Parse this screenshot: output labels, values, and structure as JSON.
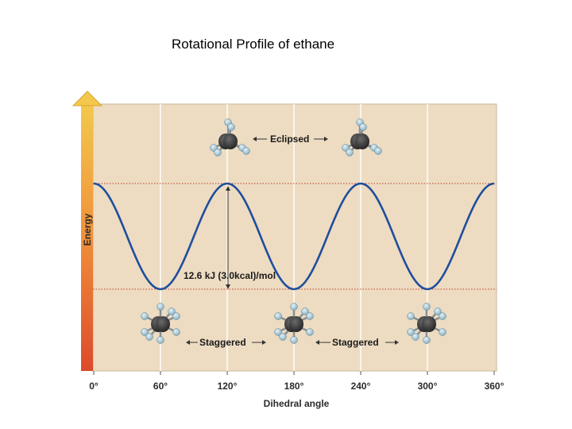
{
  "slide": {
    "title": "Rotational Profile of ethane"
  },
  "chart_data": {
    "type": "line",
    "title": "",
    "xlabel": "Dihedral angle",
    "ylabel": "Energy",
    "x_ticks": [
      "0°",
      "60°",
      "120°",
      "180°",
      "240°",
      "300°",
      "360°"
    ],
    "xlim": [
      0,
      360
    ],
    "grid": "vertical lines at 60° intervals",
    "series": [
      {
        "x": [
          0,
          60,
          120,
          180,
          240,
          300,
          360
        ],
        "y": [
          12.6,
          0,
          12.6,
          0,
          12.6,
          0,
          12.6
        ],
        "color": "#1f4e9c"
      }
    ],
    "annotations": {
      "barrier": "12.6 kJ (3.0kcal)/mol",
      "eclipsed": "Eclipsed",
      "staggered": [
        "Staggered",
        "Staggered"
      ]
    },
    "colors": {
      "plot_background": "#eddcc2",
      "curve": "#1f4e9c",
      "reference_lines": "#c0392b",
      "arrow_top": "#f2c24a",
      "arrow_bottom": "#dd4b2e"
    }
  }
}
